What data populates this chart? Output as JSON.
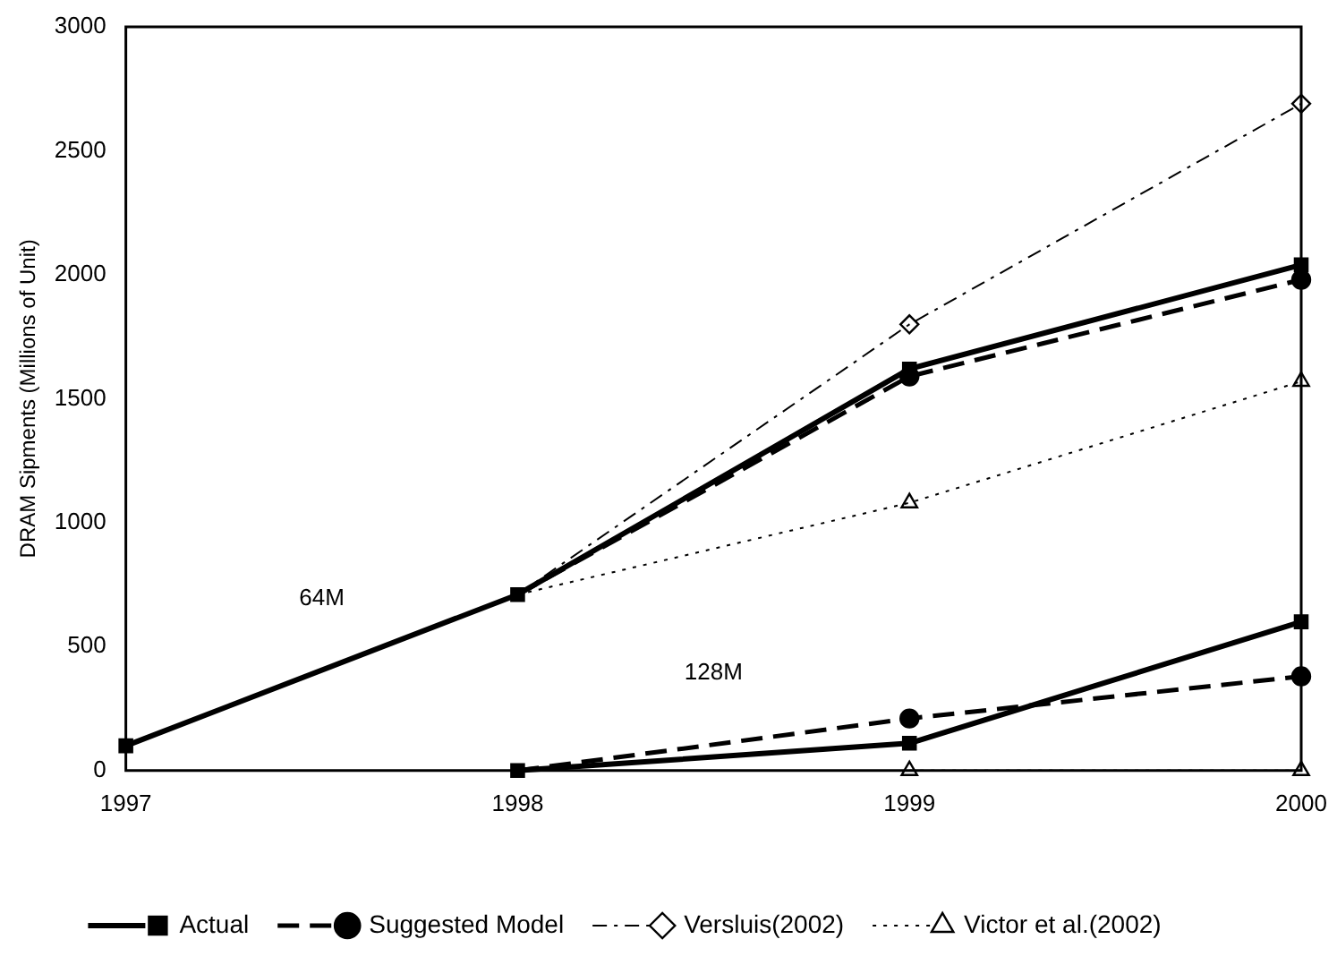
{
  "chart_data": {
    "type": "line",
    "ylabel": "DRAM Sipments (Millions of Unit)",
    "x": [
      1997,
      1998,
      1999,
      2000
    ],
    "xlim": [
      1997,
      2000
    ],
    "xticks": [
      1997,
      1998,
      1999,
      2000
    ],
    "ylim": [
      0,
      3000
    ],
    "yticks": [
      0,
      500,
      1000,
      1500,
      2000,
      2500,
      3000
    ],
    "grid": false,
    "legend": "bottom",
    "series": [
      {
        "name": "Actual",
        "color": "#000000",
        "marker": "square",
        "line_style": "solid",
        "values": [
          100,
          710,
          1620,
          2040
        ]
      },
      {
        "name": "Suggested Model",
        "color": "#000000",
        "marker": "circle",
        "line_style": "dashed",
        "values": [
          null,
          710,
          1590,
          1980
        ]
      },
      {
        "name": "Versluis(2002)",
        "color": "#000000",
        "marker": "diamond",
        "line_style": "dashdot",
        "values": [
          null,
          710,
          1800,
          2690
        ]
      },
      {
        "name": "Victor et al.(2002)",
        "color": "#000000",
        "marker": "triangle",
        "line_style": "dotted",
        "values": [
          null,
          710,
          1080,
          1570
        ]
      },
      {
        "color": "#000000",
        "marker": "square",
        "line_style": "solid",
        "values": [
          null,
          0,
          110,
          600
        ]
      },
      {
        "color": "#000000",
        "marker": "circle",
        "line_style": "dashed",
        "values": [
          null,
          0,
          210,
          380
        ]
      },
      {
        "color": "#000000",
        "marker": "triangle",
        "line_style": "dotted",
        "values": [
          null,
          null,
          0,
          0
        ]
      }
    ],
    "annotations": [
      {
        "text": "64M",
        "x": 1997.5,
        "y": 405
      },
      {
        "text": "128M",
        "x": 1998.5,
        "y": 105
      }
    ]
  }
}
